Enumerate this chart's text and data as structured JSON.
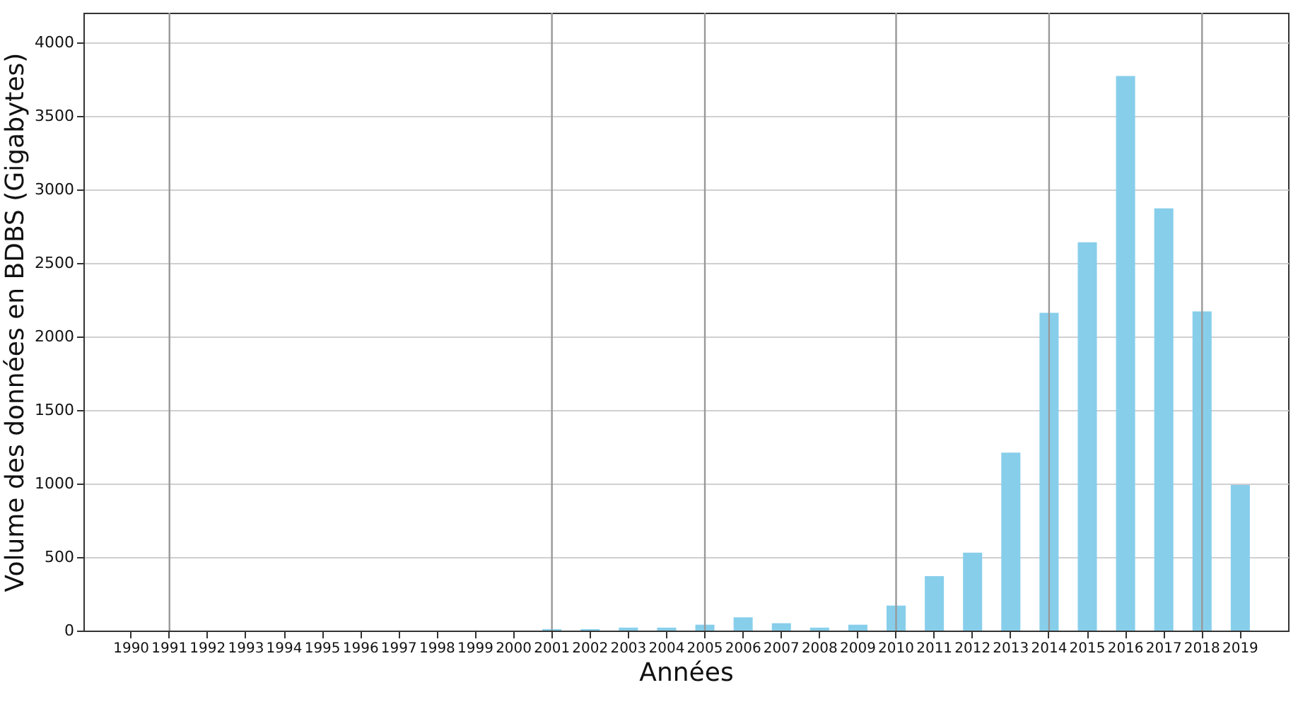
{
  "chart_data": {
    "type": "bar",
    "xlabel": "Années",
    "ylabel": "Volume des données en BDBS (Gigabytes)",
    "categories": [
      "1990",
      "1991",
      "1992",
      "1993",
      "1994",
      "1995",
      "1996",
      "1997",
      "1998",
      "1999",
      "2000",
      "2001",
      "2002",
      "2003",
      "2004",
      "2005",
      "2006",
      "2007",
      "2008",
      "2009",
      "2010",
      "2011",
      "2012",
      "2013",
      "2014",
      "2015",
      "2016",
      "2017",
      "2018",
      "2019"
    ],
    "values": [
      0,
      0,
      0,
      0,
      0,
      0,
      0,
      0,
      0,
      0,
      0,
      10,
      10,
      20,
      20,
      40,
      90,
      50,
      20,
      40,
      170,
      370,
      530,
      1210,
      2160,
      2640,
      3770,
      2870,
      2170,
      990
    ],
    "color": "#87ceeb",
    "ylim": [
      0,
      4200
    ],
    "yticks": [
      0,
      500,
      1000,
      1500,
      2000,
      2500,
      3000,
      3500,
      4000
    ],
    "grid": "y",
    "ref_lines": [
      {
        "axis": "x",
        "value": "1991",
        "color": "#999999"
      },
      {
        "axis": "x",
        "value": "2001",
        "color": "#999999"
      },
      {
        "axis": "x",
        "value": "2005",
        "color": "#999999"
      },
      {
        "axis": "x",
        "value": "2010",
        "color": "#999999"
      },
      {
        "axis": "x",
        "value": "2014",
        "color": "#999999"
      },
      {
        "axis": "x",
        "value": "2018",
        "color": "#999999"
      }
    ]
  }
}
